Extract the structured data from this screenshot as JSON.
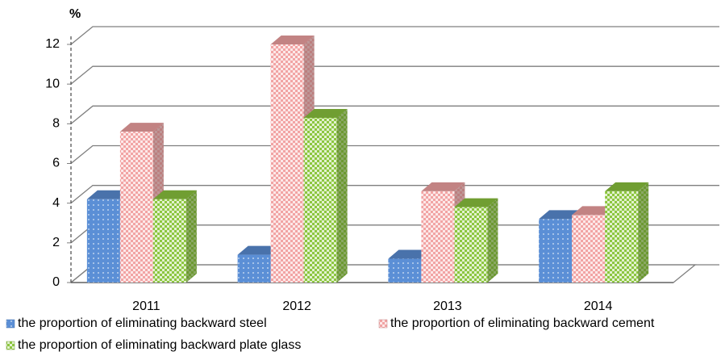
{
  "chart_data": {
    "type": "bar3d",
    "ylabel": "%",
    "categories": [
      "2011",
      "2012",
      "2013",
      "2014"
    ],
    "series": [
      {
        "name": "the proportion of eliminating backward steel",
        "color": "#5b8fd6",
        "values": [
          4.2,
          1.4,
          1.2,
          3.2
        ]
      },
      {
        "name": "the proportion of eliminating backward cement",
        "color": "#f2a4a4",
        "values": [
          7.6,
          12.0,
          4.6,
          3.4
        ]
      },
      {
        "name": "the proportion of eliminating backward plate glass",
        "color": "#8cc63f",
        "values": [
          4.2,
          8.3,
          3.8,
          4.6
        ]
      }
    ],
    "ylim": [
      0,
      12
    ],
    "yticks": [
      0,
      2,
      4,
      6,
      8,
      10,
      12
    ],
    "grid": true
  }
}
